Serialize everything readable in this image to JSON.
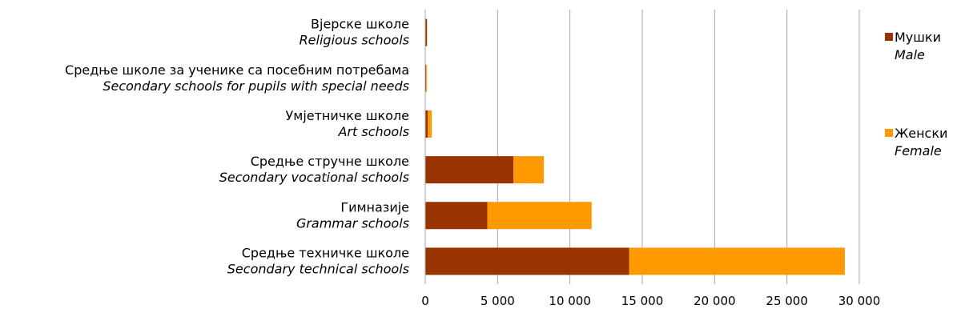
{
  "chart_data": {
    "type": "bar",
    "orientation": "horizontal",
    "stacked": true,
    "categories": [
      {
        "label": "Вјерске школе",
        "sublabel": "Religious schools"
      },
      {
        "label": "Средње школе за ученике са посебним потребама",
        "sublabel": "Secondary schools for pupils with special needs"
      },
      {
        "label": "Умјетничке школе",
        "sublabel": "Art schools"
      },
      {
        "label": "Средње стручне школе",
        "sublabel": "Secondary vocational schools"
      },
      {
        "label": "Гимназије",
        "sublabel": "Grammar schools"
      },
      {
        "label": "Средње техничке школе",
        "sublabel": "Secondary technical schools"
      }
    ],
    "series": [
      {
        "name": "Мушки",
        "subname": "Male",
        "color": "#993300",
        "values": [
          120,
          60,
          180,
          6100,
          4300,
          14100
        ]
      },
      {
        "name": "Женски",
        "subname": "Female",
        "color": "#FF9900",
        "values": [
          20,
          60,
          270,
          2100,
          7200,
          14900
        ]
      }
    ],
    "xlim": [
      0,
      30000
    ],
    "xticks": [
      0,
      5000,
      10000,
      15000,
      20000,
      25000,
      30000
    ],
    "xtick_labels": [
      "0",
      "5 000",
      "10 000",
      "15 000",
      "20 000",
      "25 000",
      "30 000"
    ],
    "grid": "vertical",
    "gridline_color": "#A6A6A6",
    "legend_position": "right"
  }
}
